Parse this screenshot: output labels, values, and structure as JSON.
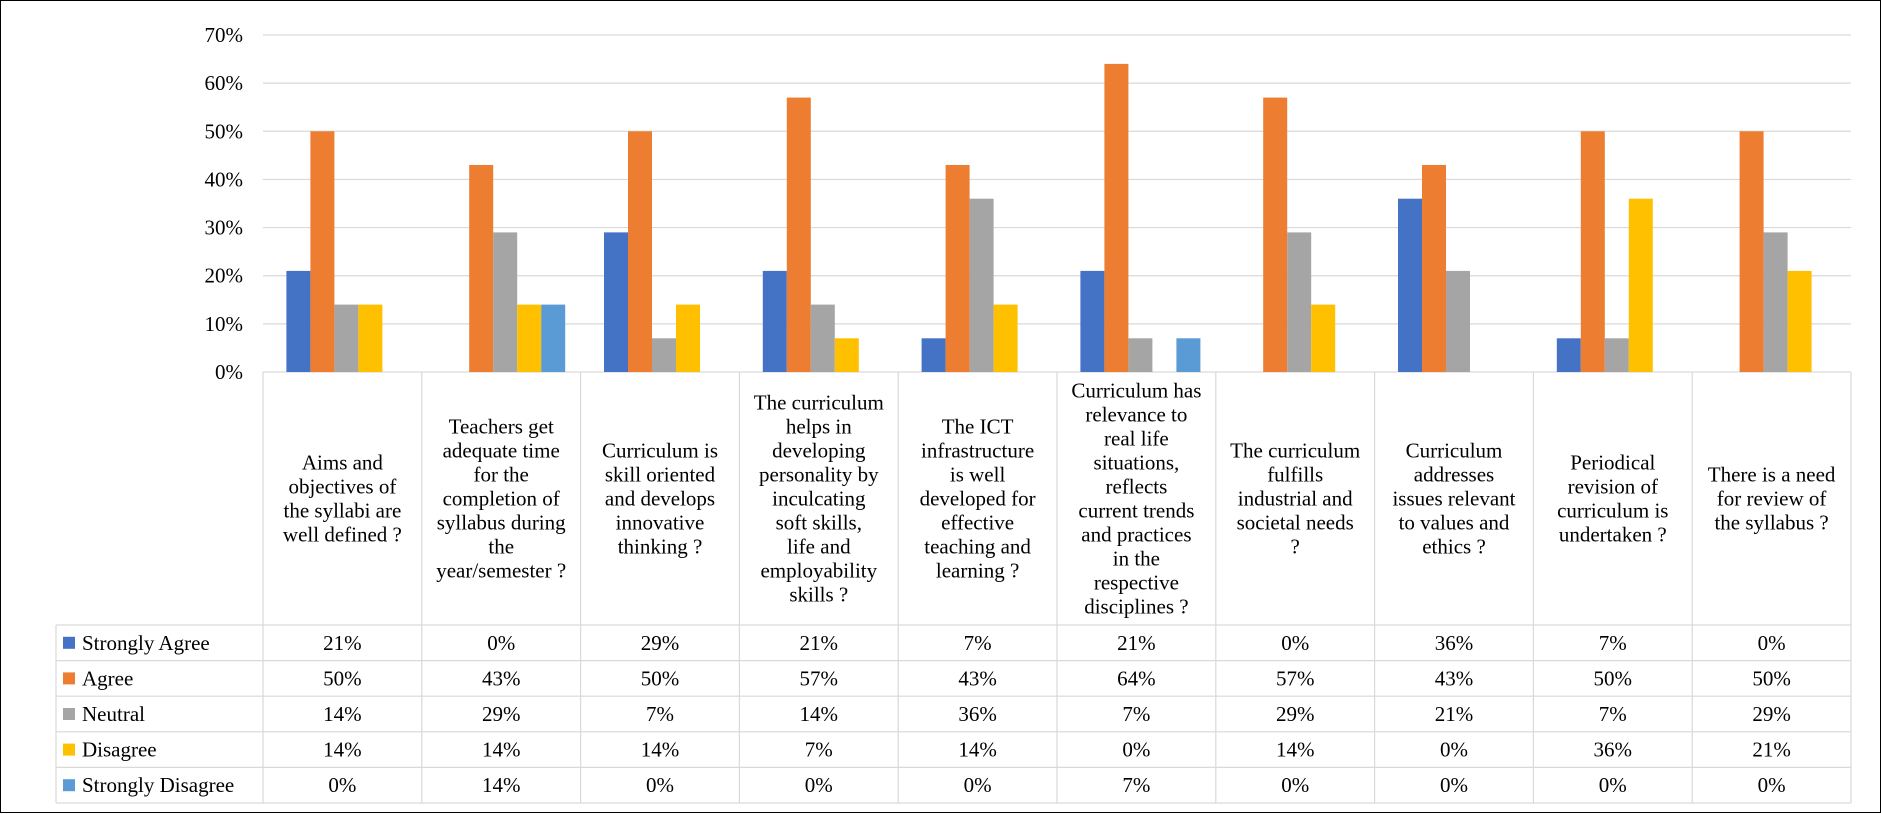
{
  "chart_data": {
    "type": "bar",
    "title": "",
    "xlabel": "",
    "ylabel": "",
    "ylim": [
      0,
      70
    ],
    "y_ticks": [
      "0%",
      "10%",
      "20%",
      "30%",
      "40%",
      "50%",
      "60%",
      "70%"
    ],
    "grid": "horizontal",
    "legend": "data-table-left",
    "categories": [
      "Aims and objectives of the syllabi are well defined ?",
      "Teachers get adequate time for the completion of syllabus during the year/semester ?",
      "Curriculum is skill oriented and develops innovative thinking ?",
      "The curriculum helps in developing personality by inculcating soft skills, life and employability skills ?",
      "The ICT infrastructure is well developed for effective teaching and learning ?",
      "Curriculum has relevance to real life situations, reflects current trends and practices in the respective disciplines ?",
      "The curriculum fulfills industrial and societal needs ?",
      "Curriculum addresses issues relevant to values and ethics ?",
      "Periodical revision of curriculum is undertaken ?",
      "There is a need for review of the syllabus ?"
    ],
    "series": [
      {
        "name": "Strongly Agree",
        "color": "#4472C4",
        "values": [
          21,
          0,
          29,
          21,
          7,
          21,
          0,
          36,
          7,
          0
        ],
        "labels": [
          "21%",
          "0%",
          "29%",
          "21%",
          "7%",
          "21%",
          "0%",
          "36%",
          "7%",
          "0%"
        ]
      },
      {
        "name": "Agree",
        "color": "#ED7D31",
        "values": [
          50,
          43,
          50,
          57,
          43,
          64,
          57,
          43,
          50,
          50
        ],
        "labels": [
          "50%",
          "43%",
          "50%",
          "57%",
          "43%",
          "64%",
          "57%",
          "43%",
          "50%",
          "50%"
        ]
      },
      {
        "name": "Neutral",
        "color": "#A5A5A5",
        "values": [
          14,
          29,
          7,
          14,
          36,
          7,
          29,
          21,
          7,
          29
        ],
        "labels": [
          "14%",
          "29%",
          "7%",
          "14%",
          "36%",
          "7%",
          "29%",
          "21%",
          "7%",
          "29%"
        ]
      },
      {
        "name": "Disagree",
        "color": "#FFC000",
        "values": [
          14,
          14,
          14,
          7,
          14,
          0,
          14,
          0,
          36,
          21
        ],
        "labels": [
          "14%",
          "14%",
          "14%",
          "7%",
          "14%",
          "0%",
          "14%",
          "0%",
          "36%",
          "21%"
        ]
      },
      {
        "name": "Strongly Disagree",
        "color": "#5B9BD5",
        "values": [
          0,
          14,
          0,
          0,
          0,
          7,
          0,
          0,
          0,
          0
        ],
        "labels": [
          "0%",
          "14%",
          "0%",
          "0%",
          "0%",
          "7%",
          "0%",
          "0%",
          "0%",
          "0%"
        ]
      }
    ]
  }
}
